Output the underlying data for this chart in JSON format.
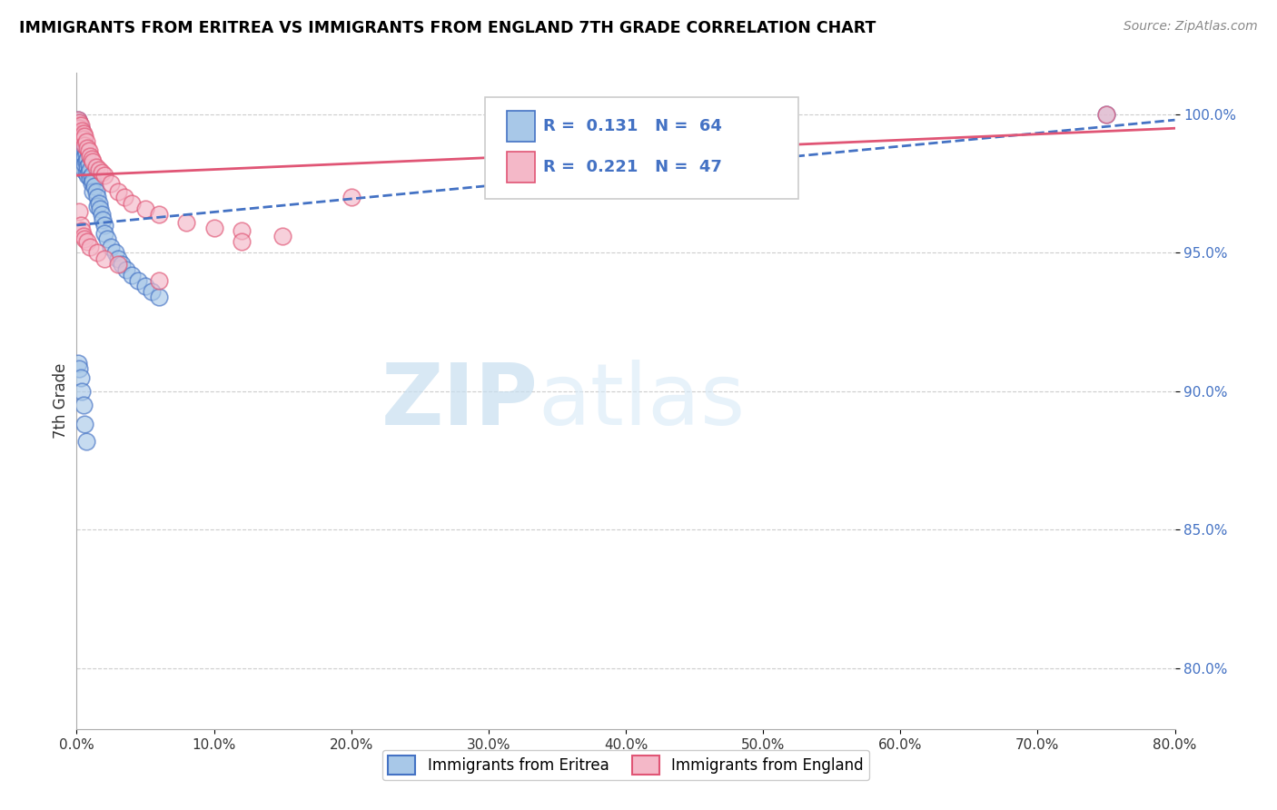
{
  "title": "IMMIGRANTS FROM ERITREA VS IMMIGRANTS FROM ENGLAND 7TH GRADE CORRELATION CHART",
  "source": "Source: ZipAtlas.com",
  "ylabel": "7th Grade",
  "yticks": [
    "100.0%",
    "95.0%",
    "90.0%",
    "85.0%",
    "80.0%"
  ],
  "ytick_vals": [
    1.0,
    0.95,
    0.9,
    0.85,
    0.8
  ],
  "legend_eritrea": "Immigrants from Eritrea",
  "legend_england": "Immigrants from England",
  "R_eritrea": 0.131,
  "N_eritrea": 64,
  "R_england": 0.221,
  "N_england": 47,
  "color_eritrea": "#a8c8e8",
  "color_england": "#f4b8c8",
  "trendline_eritrea_color": "#4472c4",
  "trendline_england_color": "#e05575",
  "watermark_zip": "ZIP",
  "watermark_atlas": "atlas",
  "xmin": 0.0,
  "xmax": 0.8,
  "ymin": 0.778,
  "ymax": 1.015,
  "eritrea_x": [
    0.001,
    0.001,
    0.001,
    0.002,
    0.002,
    0.002,
    0.002,
    0.003,
    0.003,
    0.003,
    0.003,
    0.004,
    0.004,
    0.004,
    0.005,
    0.005,
    0.005,
    0.005,
    0.006,
    0.006,
    0.006,
    0.007,
    0.007,
    0.007,
    0.008,
    0.008,
    0.008,
    0.009,
    0.009,
    0.01,
    0.01,
    0.011,
    0.011,
    0.012,
    0.012,
    0.013,
    0.014,
    0.015,
    0.015,
    0.016,
    0.017,
    0.018,
    0.019,
    0.02,
    0.02,
    0.022,
    0.025,
    0.028,
    0.03,
    0.033,
    0.036,
    0.04,
    0.045,
    0.05,
    0.055,
    0.06,
    0.001,
    0.002,
    0.003,
    0.004,
    0.005,
    0.006,
    0.007,
    0.75
  ],
  "eritrea_y": [
    0.998,
    0.995,
    0.992,
    0.997,
    0.994,
    0.99,
    0.988,
    0.995,
    0.991,
    0.988,
    0.985,
    0.993,
    0.989,
    0.986,
    0.99,
    0.987,
    0.984,
    0.98,
    0.988,
    0.985,
    0.982,
    0.986,
    0.983,
    0.979,
    0.984,
    0.981,
    0.978,
    0.982,
    0.979,
    0.98,
    0.977,
    0.978,
    0.975,
    0.976,
    0.972,
    0.974,
    0.972,
    0.97,
    0.967,
    0.968,
    0.966,
    0.964,
    0.962,
    0.96,
    0.957,
    0.955,
    0.952,
    0.95,
    0.948,
    0.946,
    0.944,
    0.942,
    0.94,
    0.938,
    0.936,
    0.934,
    0.91,
    0.908,
    0.905,
    0.9,
    0.895,
    0.888,
    0.882,
    1.0
  ],
  "england_x": [
    0.001,
    0.001,
    0.001,
    0.002,
    0.002,
    0.003,
    0.003,
    0.004,
    0.004,
    0.005,
    0.005,
    0.006,
    0.006,
    0.007,
    0.008,
    0.009,
    0.01,
    0.011,
    0.012,
    0.014,
    0.016,
    0.018,
    0.02,
    0.025,
    0.03,
    0.035,
    0.04,
    0.05,
    0.06,
    0.08,
    0.1,
    0.12,
    0.15,
    0.002,
    0.003,
    0.004,
    0.005,
    0.006,
    0.008,
    0.01,
    0.015,
    0.02,
    0.03,
    0.06,
    0.12,
    0.2,
    0.75
  ],
  "england_y": [
    0.998,
    0.996,
    0.994,
    0.997,
    0.995,
    0.996,
    0.993,
    0.994,
    0.992,
    0.993,
    0.991,
    0.992,
    0.989,
    0.99,
    0.988,
    0.987,
    0.985,
    0.984,
    0.983,
    0.981,
    0.98,
    0.979,
    0.978,
    0.975,
    0.972,
    0.97,
    0.968,
    0.966,
    0.964,
    0.961,
    0.959,
    0.958,
    0.956,
    0.965,
    0.96,
    0.958,
    0.956,
    0.955,
    0.954,
    0.952,
    0.95,
    0.948,
    0.946,
    0.94,
    0.954,
    0.97,
    1.0
  ],
  "trendline_eritrea_x0": 0.0,
  "trendline_eritrea_x1": 0.8,
  "trendline_eritrea_y0": 0.96,
  "trendline_eritrea_y1": 0.998,
  "trendline_england_x0": 0.0,
  "trendline_england_x1": 0.8,
  "trendline_england_y0": 0.978,
  "trendline_england_y1": 0.995
}
